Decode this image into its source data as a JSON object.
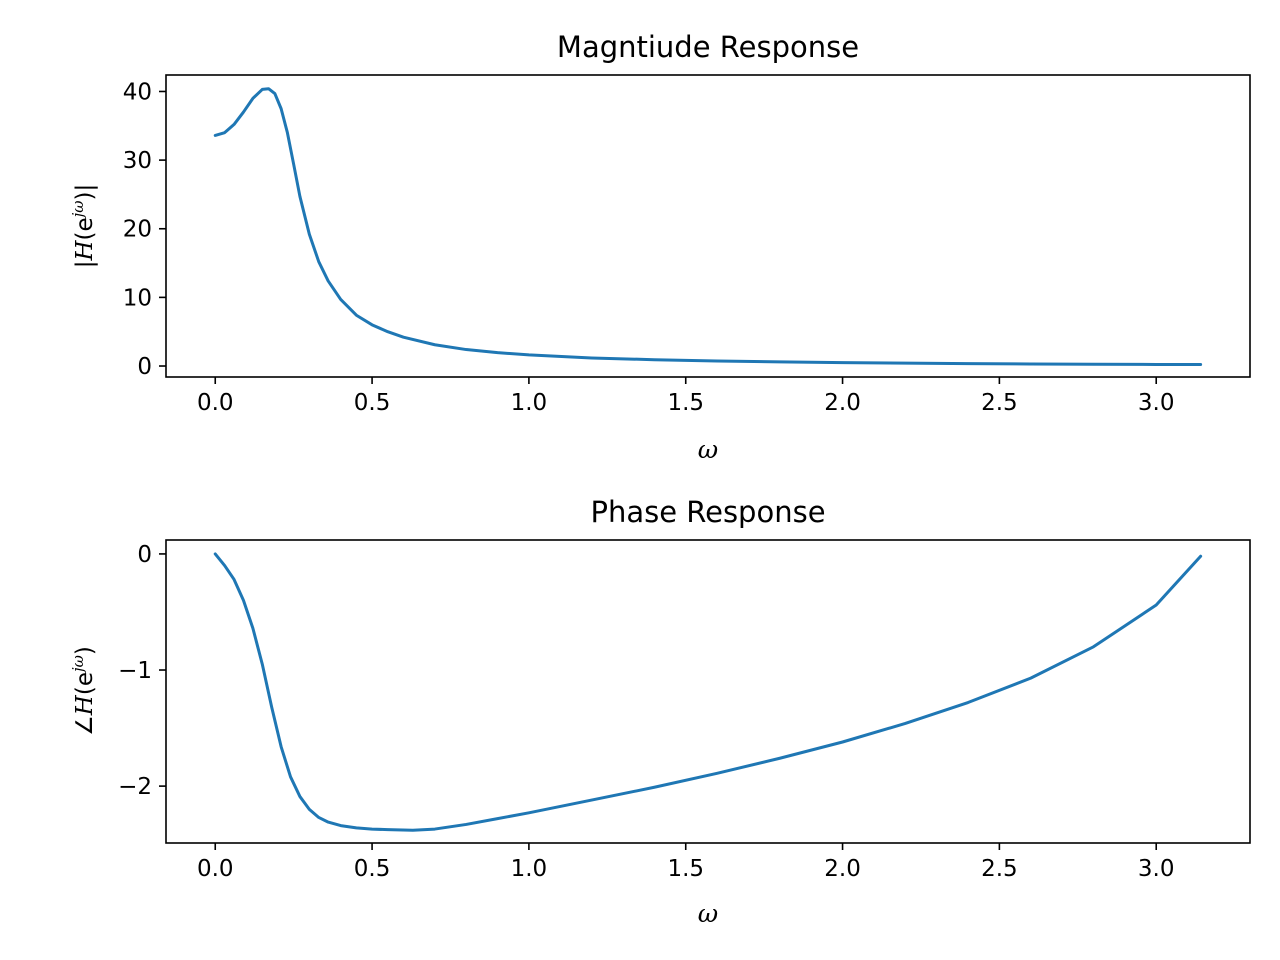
{
  "colors": {
    "series": "#1f77b4",
    "frame": "#000000",
    "background": "#ffffff"
  },
  "chart_data": [
    {
      "type": "line",
      "title": "Magntiude Response",
      "xlabel": "ω",
      "ylabel": "|H(e^{jω})|",
      "xlim": [
        -0.157,
        3.299
      ],
      "ylim": [
        -1.6,
        42.4
      ],
      "xticks": [
        0.0,
        0.5,
        1.0,
        1.5,
        2.0,
        2.5,
        3.0
      ],
      "xtick_labels": [
        "0.0",
        "0.5",
        "1.0",
        "1.5",
        "2.0",
        "2.5",
        "3.0"
      ],
      "yticks": [
        0,
        10,
        20,
        30,
        40
      ],
      "ytick_labels": [
        "0",
        "10",
        "20",
        "30",
        "40"
      ],
      "grid": false,
      "series": [
        {
          "color": "#1f77b4",
          "x": [
            0.0,
            0.03,
            0.06,
            0.09,
            0.12,
            0.15,
            0.17,
            0.19,
            0.21,
            0.23,
            0.25,
            0.27,
            0.3,
            0.33,
            0.36,
            0.4,
            0.45,
            0.5,
            0.55,
            0.6,
            0.7,
            0.8,
            0.9,
            1.0,
            1.2,
            1.4,
            1.6,
            1.8,
            2.0,
            2.2,
            2.4,
            2.6,
            2.8,
            3.0,
            3.1416
          ],
          "y": [
            33.6,
            34.0,
            35.2,
            37.0,
            39.0,
            40.3,
            40.4,
            39.7,
            37.5,
            34.0,
            29.4,
            24.7,
            19.2,
            15.2,
            12.4,
            9.7,
            7.4,
            6.0,
            5.0,
            4.2,
            3.1,
            2.4,
            1.95,
            1.62,
            1.17,
            0.92,
            0.74,
            0.6,
            0.5,
            0.42,
            0.35,
            0.3,
            0.26,
            0.23,
            0.22
          ]
        }
      ]
    },
    {
      "type": "line",
      "title": "Phase Response",
      "xlabel": "ω",
      "ylabel": "∠H(e^{jω})",
      "xlim": [
        -0.157,
        3.299
      ],
      "ylim": [
        -2.49,
        0.12
      ],
      "xticks": [
        0.0,
        0.5,
        1.0,
        1.5,
        2.0,
        2.5,
        3.0
      ],
      "xtick_labels": [
        "0.0",
        "0.5",
        "1.0",
        "1.5",
        "2.0",
        "2.5",
        "3.0"
      ],
      "yticks": [
        0,
        -1,
        -2
      ],
      "ytick_labels": [
        "0",
        "−1",
        "−2"
      ],
      "grid": false,
      "series": [
        {
          "color": "#1f77b4",
          "x": [
            0.0,
            0.03,
            0.06,
            0.09,
            0.12,
            0.15,
            0.18,
            0.21,
            0.24,
            0.27,
            0.3,
            0.33,
            0.36,
            0.4,
            0.45,
            0.5,
            0.55,
            0.63,
            0.7,
            0.8,
            0.9,
            1.0,
            1.2,
            1.4,
            1.6,
            1.8,
            2.0,
            2.2,
            2.4,
            2.6,
            2.8,
            3.0,
            3.1416
          ],
          "y": [
            0.0,
            -0.1,
            -0.22,
            -0.4,
            -0.64,
            -0.95,
            -1.32,
            -1.66,
            -1.92,
            -2.09,
            -2.2,
            -2.27,
            -2.31,
            -2.34,
            -2.36,
            -2.37,
            -2.375,
            -2.38,
            -2.37,
            -2.33,
            -2.28,
            -2.23,
            -2.12,
            -2.01,
            -1.89,
            -1.76,
            -1.62,
            -1.46,
            -1.28,
            -1.07,
            -0.8,
            -0.44,
            -0.02
          ]
        }
      ]
    }
  ]
}
